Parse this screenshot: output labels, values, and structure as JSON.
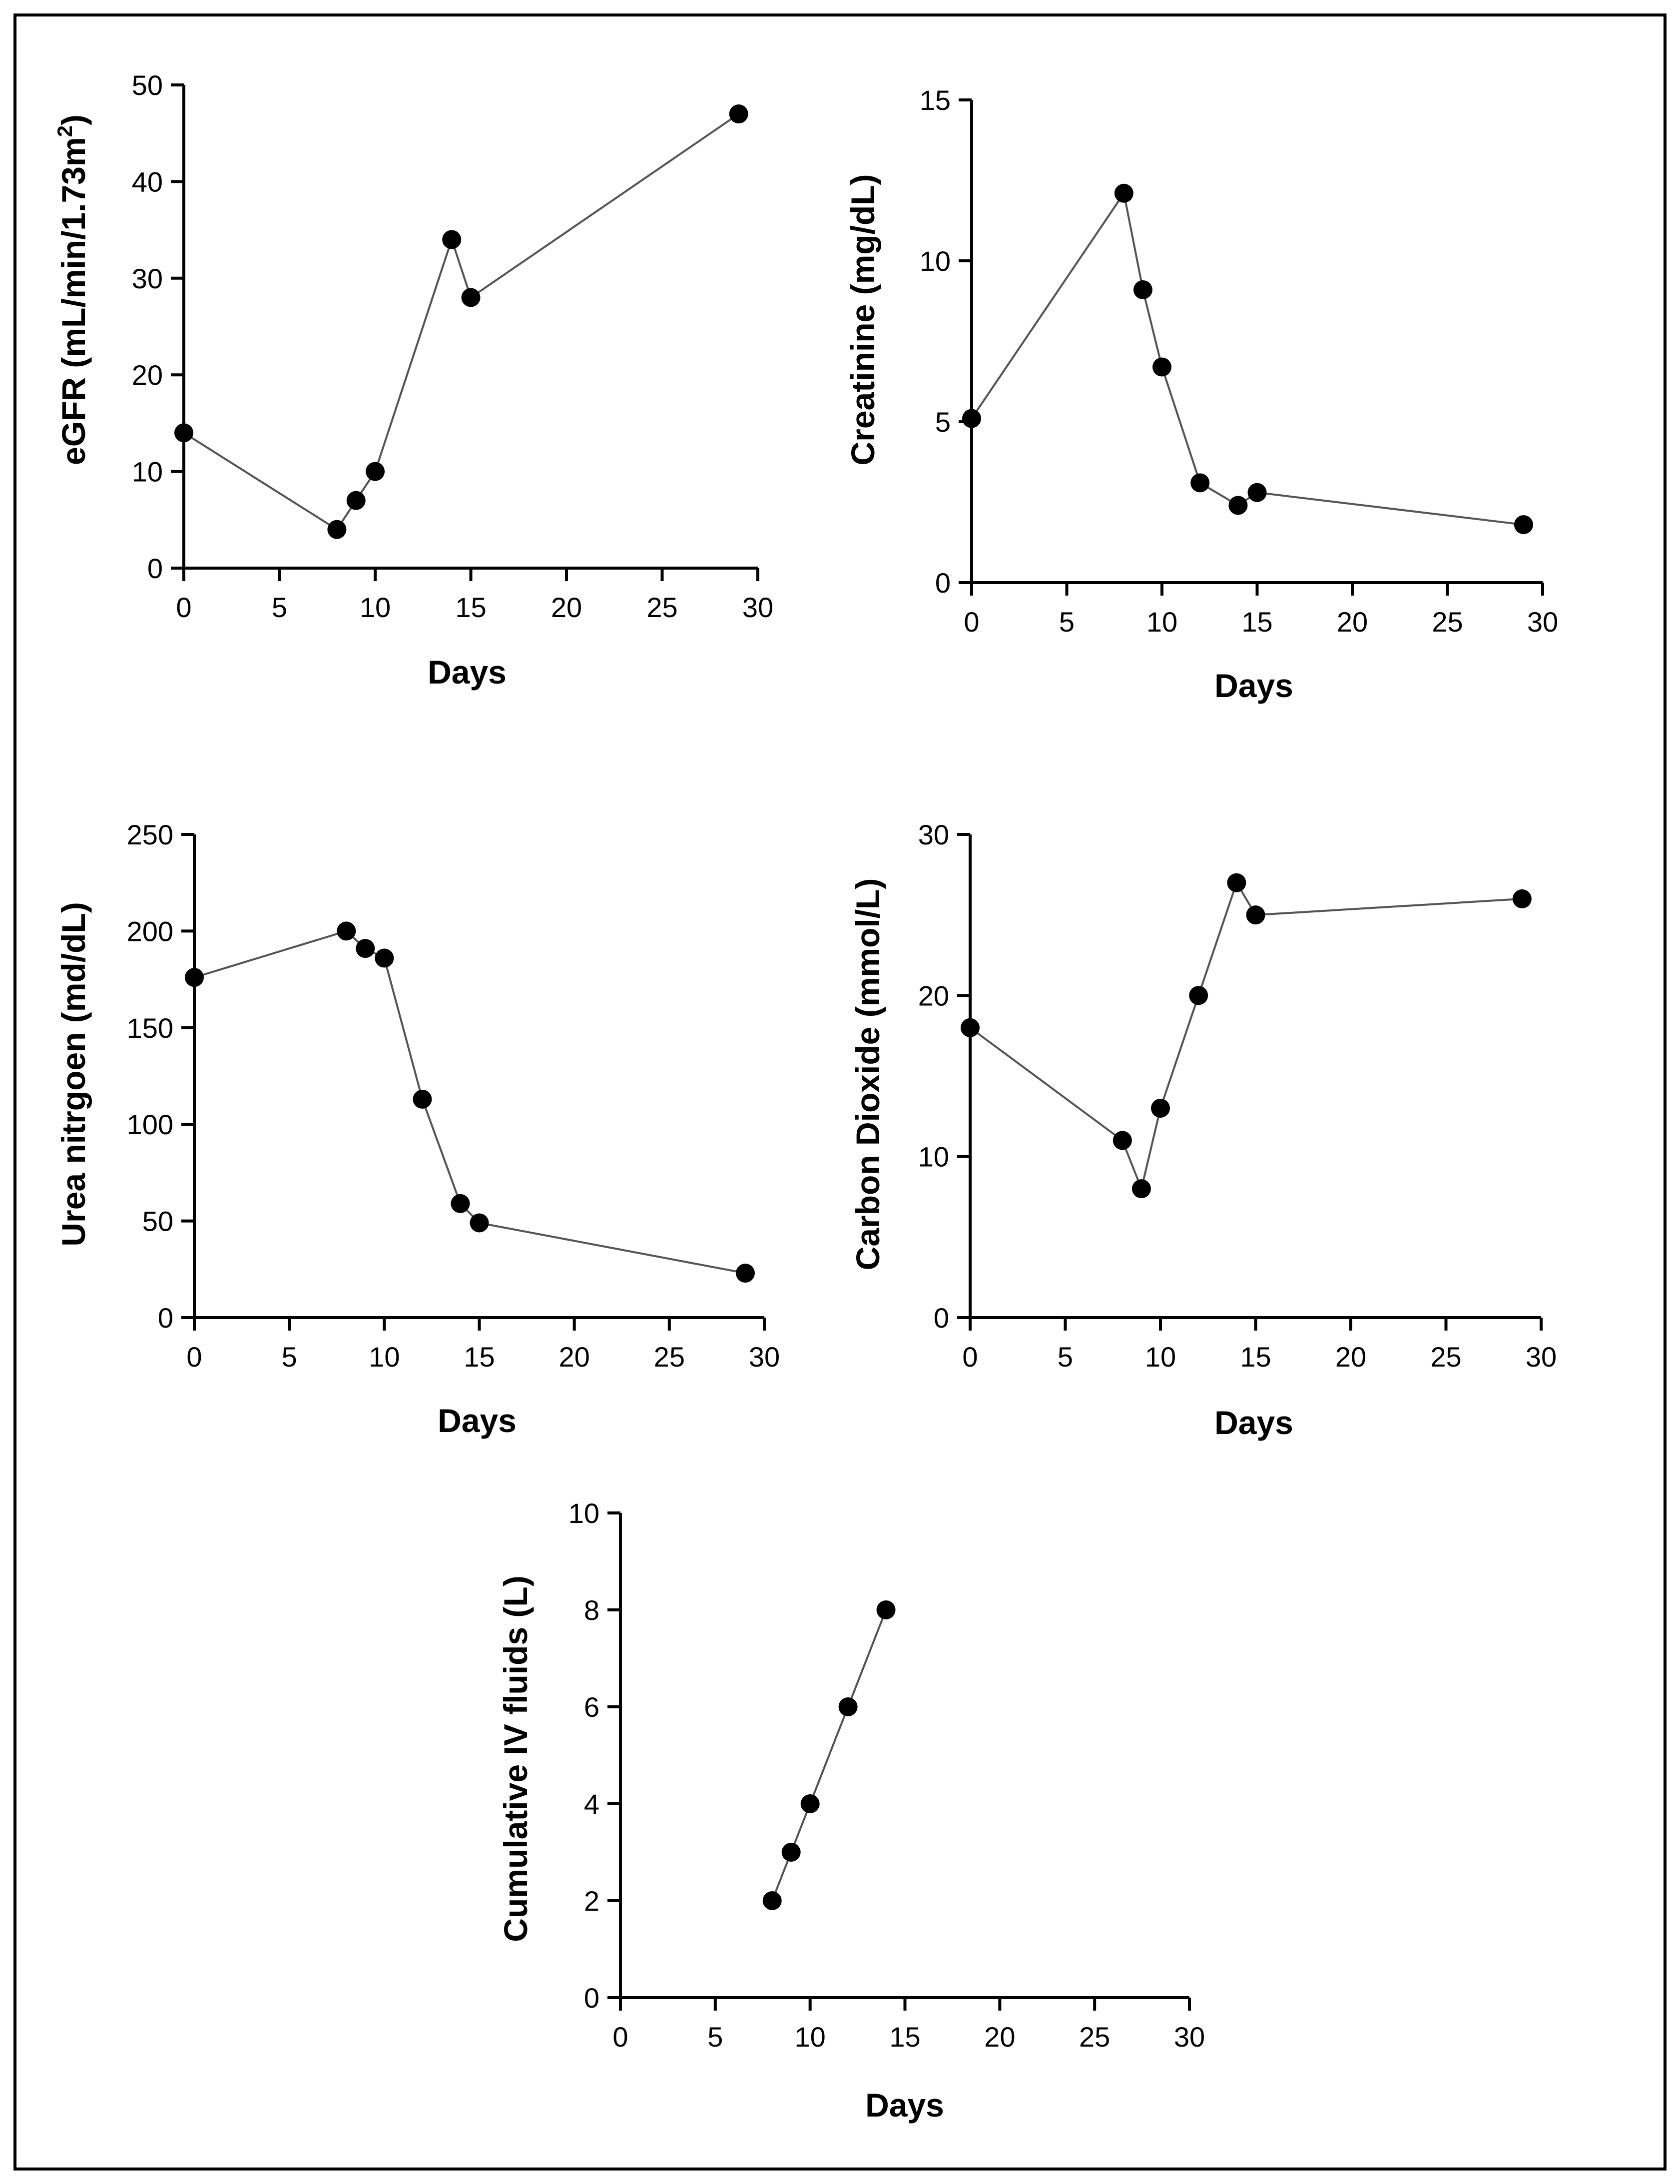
{
  "figure": {
    "border_color": "#000000",
    "line_color": "#555555",
    "marker_color": "#000000"
  },
  "chart_data": [
    {
      "id": "egfr",
      "type": "line",
      "title": "",
      "xlabel": "Days",
      "ylabel": "eGFR (mL/min/1.73m",
      "ylabel_superscript": "2",
      "ylabel_suffix": ")",
      "xlim": [
        0,
        30
      ],
      "ylim": [
        0,
        50
      ],
      "xticks": [
        0,
        5,
        10,
        15,
        20,
        25,
        30
      ],
      "yticks": [
        0,
        10,
        20,
        30,
        40,
        50
      ],
      "grid": false,
      "x": [
        0,
        8,
        9,
        10,
        14,
        15,
        29
      ],
      "y": [
        14,
        4,
        7,
        10,
        34,
        28,
        47
      ]
    },
    {
      "id": "creatinine",
      "type": "line",
      "title": "",
      "xlabel": "Days",
      "ylabel": "Creatinine (mg/dL)",
      "xlim": [
        0,
        30
      ],
      "ylim": [
        0,
        15
      ],
      "xticks": [
        0,
        5,
        10,
        15,
        20,
        25,
        30
      ],
      "yticks": [
        0,
        5,
        10,
        15
      ],
      "grid": false,
      "x": [
        0,
        8,
        9,
        10,
        12,
        14,
        15,
        29
      ],
      "y": [
        5.1,
        12.1,
        9.1,
        6.7,
        3.1,
        2.4,
        2.8,
        1.8
      ]
    },
    {
      "id": "bun",
      "type": "line",
      "title": "",
      "xlabel": "Days",
      "ylabel": "Urea nitrgoen (md/dL)",
      "xlim": [
        0,
        30
      ],
      "ylim": [
        0,
        250
      ],
      "xticks": [
        0,
        5,
        10,
        15,
        20,
        25,
        30
      ],
      "yticks": [
        0,
        50,
        100,
        150,
        200,
        250
      ],
      "grid": false,
      "x": [
        0,
        8,
        9,
        10,
        12,
        14,
        15,
        29
      ],
      "y": [
        176,
        200,
        191,
        186,
        113,
        59,
        49,
        23
      ]
    },
    {
      "id": "co2",
      "type": "line",
      "title": "",
      "xlabel": "Days",
      "ylabel": "Carbon Dioxide (mmol/L)",
      "xlim": [
        0,
        30
      ],
      "ylim": [
        0,
        30
      ],
      "xticks": [
        0,
        5,
        10,
        15,
        20,
        25,
        30
      ],
      "yticks": [
        0,
        10,
        20,
        30
      ],
      "grid": false,
      "x": [
        0,
        8,
        9,
        10,
        12,
        14,
        15,
        29
      ],
      "y": [
        18,
        11,
        8,
        13,
        20,
        27,
        25,
        26
      ]
    },
    {
      "id": "ivfluids",
      "type": "line",
      "title": "",
      "xlabel": "Days",
      "ylabel": "Cumulative  IV fluids (L)",
      "xlim": [
        0,
        30
      ],
      "ylim": [
        0,
        10
      ],
      "xticks": [
        0,
        5,
        10,
        15,
        20,
        25,
        30
      ],
      "yticks": [
        0,
        2,
        4,
        6,
        8,
        10
      ],
      "grid": false,
      "x": [
        8,
        9,
        10,
        12,
        14
      ],
      "y": [
        2,
        3,
        4,
        6,
        8
      ]
    }
  ]
}
